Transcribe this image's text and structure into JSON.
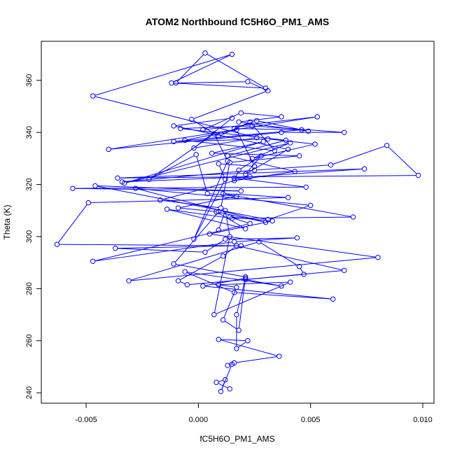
{
  "chart_data": {
    "type": "line",
    "title": "ATOM2 Northbound fC5H6O_PM1_AMS",
    "xlabel": "fC5H6O_PM1_AMS",
    "ylabel": "Theta (K)",
    "xlim": [
      -0.007,
      0.0105
    ],
    "ylim": [
      236,
      375
    ],
    "x_ticks": [
      -0.005,
      0.0,
      0.005,
      0.01
    ],
    "x_tick_labels": [
      "-0.005",
      "0.000",
      "0.005",
      "0.010"
    ],
    "y_ticks": [
      240,
      260,
      280,
      300,
      320,
      340,
      360
    ],
    "y_tick_labels": [
      "240",
      "260",
      "280",
      "300",
      "320",
      "340",
      "360"
    ],
    "grid": false,
    "markers": "open-circle",
    "series": [
      {
        "color": "#0000ff",
        "x": [
          0.0014,
          0.0008,
          0.0012,
          0.001,
          0.0015,
          0.0013,
          0.0016,
          0.0036,
          0.0009,
          0.0022,
          0.0017,
          0.0017,
          0.0021,
          0.0002,
          0.006,
          0.0016,
          -0.0006,
          0.0037,
          0.0021,
          0.0065,
          0.0017,
          0.0011,
          -0.0009,
          -0.0005,
          0.0047,
          0.0045,
          0.0027,
          -0.0031,
          0.008,
          0.0005,
          0.0033,
          0.0014,
          0.0023,
          -0.0047,
          0.0016,
          0.0044,
          0.0012,
          0.0003,
          -0.0037,
          0.0019,
          -0.0063,
          -0.0049,
          0.004,
          0.0011,
          0.0069,
          0.0015,
          -0.0014,
          0.0021,
          0.0008,
          0.003,
          -0.0028,
          0.005,
          0.0031,
          -0.0046,
          0.0019,
          -0.0056,
          0.0048,
          0.0016,
          0.0074,
          -0.0036,
          0.0098,
          0.0084,
          0.0059,
          0.0025,
          -0.0034,
          0.0023,
          -0.0017,
          0.001,
          0.0014,
          0.0045,
          0.0006,
          0.0029,
          -0.0033,
          0.0041,
          0.0024,
          0.0052,
          0.0031,
          -0.0011,
          0.0046,
          0.0016,
          0.0026,
          0.0049,
          0.0018,
          0.0037,
          0.0019,
          0.0002,
          0.0053,
          -0.004,
          0.0037,
          0.0065,
          0.0024,
          -0.0008,
          0.0039,
          0.0013,
          0.0043,
          0.0016,
          0.0018,
          0.0028,
          0.0021,
          0.004,
          -0.0011,
          0.0015,
          -0.0002,
          0.0026,
          -0.0047,
          0.0015,
          -0.0012,
          0.003,
          0.0003,
          -0.001,
          0.0022,
          0.0031,
          -0.0003,
          0.0009,
          0.0023,
          0.0034,
          -0.0006,
          0.0017,
          0.0025,
          0.0009,
          0.0012,
          -0.0002,
          0.0013,
          0.0007,
          -0.0022,
          -0.0001,
          0.0004,
          0.0017,
          -0.0009,
          0.0009,
          -0.0011,
          0.0021,
          0.0018,
          0.0011,
          0.0017,
          0.0009,
          0.0041,
          0.0007,
          0.0014,
          0.0012,
          0.0009
        ],
        "y": [
          241.5,
          244.0,
          245.0,
          240.5,
          251.0,
          250.5,
          251.5,
          254.0,
          260.5,
          260.0,
          257.0,
          270.0,
          284.0,
          281.0,
          276.0,
          278.5,
          286.5,
          281.0,
          283.5,
          287.0,
          296.5,
          292.5,
          283.0,
          281.5,
          285.5,
          288.5,
          298.0,
          283.0,
          292.0,
          301.0,
          306.0,
          307.5,
          305.0,
          290.5,
          298.0,
          299.5,
          299.0,
          294.0,
          295.5,
          296.5,
          297.0,
          313.0,
          315.0,
          316.5,
          307.5,
          307.0,
          310.5,
          303.0,
          309.5,
          305.5,
          318.5,
          312.0,
          306.5,
          319.5,
          317.5,
          318.5,
          319.0,
          322.5,
          326.0,
          322.5,
          323.5,
          335.0,
          327.5,
          325.5,
          321.0,
          323.0,
          314.0,
          311.0,
          328.5,
          331.0,
          332.0,
          336.5,
          320.5,
          336.0,
          330.0,
          335.5,
          337.5,
          336.5,
          341.0,
          341.5,
          344.5,
          340.5,
          344.0,
          346.0,
          347.5,
          341.0,
          346.0,
          333.5,
          340.0,
          340.0,
          342.5,
          341.5,
          337.0,
          331.0,
          325.0,
          321.5,
          325.5,
          331.0,
          324.0,
          333.5,
          342.5,
          345.5,
          334.0,
          338.0,
          354.0,
          370.0,
          359.0,
          357.0,
          370.5,
          359.0,
          359.5,
          356.0,
          345.0,
          338.5,
          344.0,
          333.0,
          337.0,
          341.0,
          327.0,
          328.0,
          322.0,
          299.0,
          329.0,
          339.5,
          322.0,
          331.5,
          316.5,
          315.5,
          311.0,
          309.5,
          289.5,
          284.5,
          264.0,
          268.0,
          280.5,
          281.5,
          282.5,
          270.0,
          300.0,
          310.0,
          302.5
        ]
      }
    ]
  }
}
